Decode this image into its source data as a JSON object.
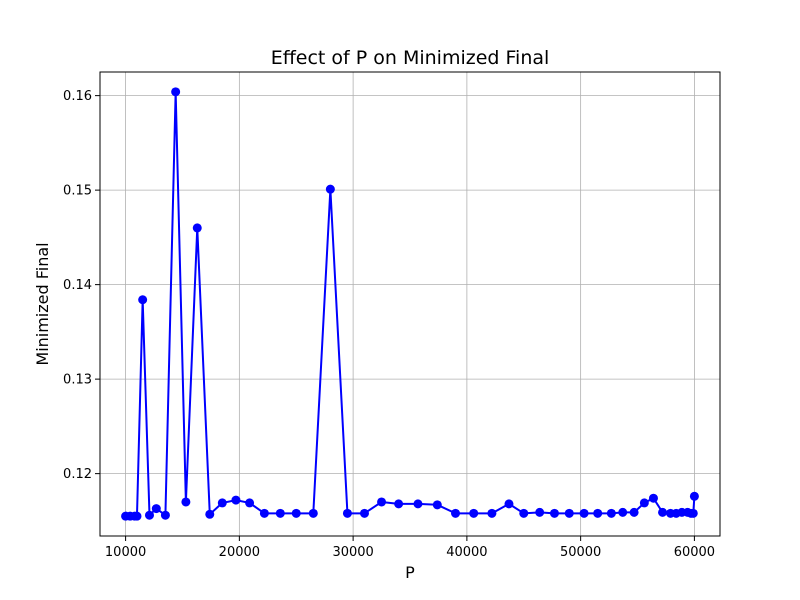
{
  "chart_data": {
    "type": "line",
    "title": "Effect of P on Minimized Final",
    "xlabel": "P",
    "ylabel": "Minimized Final",
    "xlim": [
      7750,
      62250
    ],
    "ylim": [
      0.1134,
      0.1625
    ],
    "xticks": [
      10000,
      20000,
      30000,
      40000,
      50000,
      60000
    ],
    "xtick_labels": [
      "10000",
      "20000",
      "30000",
      "40000",
      "50000",
      "60000"
    ],
    "yticks": [
      0.12,
      0.13,
      0.14,
      0.15,
      0.16
    ],
    "ytick_labels": [
      "0.12",
      "0.13",
      "0.14",
      "0.15",
      "0.16"
    ],
    "grid": true,
    "series": [
      {
        "color": "#0000ff",
        "marker": "circle",
        "x": [
          10000,
          10400,
          10800,
          11000,
          11500,
          12100,
          12700,
          13500,
          14400,
          15300,
          16300,
          17400,
          18500,
          19700,
          20900,
          22200,
          23600,
          25000,
          26500,
          28000,
          29500,
          31000,
          32500,
          34000,
          35700,
          37400,
          39000,
          40600,
          42200,
          43700,
          45000,
          46400,
          47700,
          49000,
          50300,
          51500,
          52700,
          53700,
          54700,
          55600,
          56400,
          57200,
          57900,
          58400,
          58900,
          59400,
          59700,
          59900,
          60000
        ],
        "y": [
          0.1155,
          0.1155,
          0.1155,
          0.1155,
          0.1384,
          0.1156,
          0.1163,
          0.1156,
          0.1604,
          0.117,
          0.146,
          0.1157,
          0.1169,
          0.1172,
          0.1169,
          0.1158,
          0.1158,
          0.1158,
          0.1158,
          0.1501,
          0.1158,
          0.1158,
          0.117,
          0.1168,
          0.1168,
          0.1167,
          0.1158,
          0.1158,
          0.1158,
          0.1168,
          0.1158,
          0.1159,
          0.1158,
          0.1158,
          0.1158,
          0.1158,
          0.1158,
          0.1159,
          0.1159,
          0.1169,
          0.1174,
          0.1159,
          0.1158,
          0.1158,
          0.1159,
          0.1159,
          0.1158,
          0.1158,
          0.1176
        ]
      }
    ]
  }
}
